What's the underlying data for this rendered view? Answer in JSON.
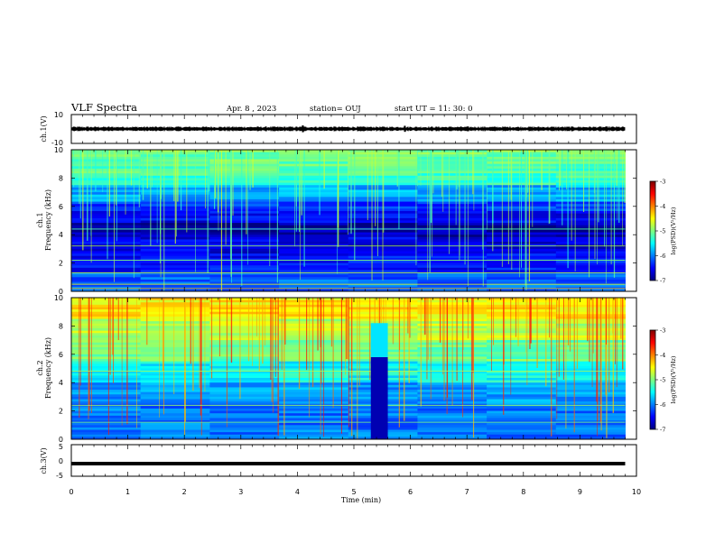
{
  "header": {
    "title": "VLF Spectra",
    "date": "Apr. 8 , 2023",
    "station": "station= OUJ",
    "start": "start UT = 11: 30: 0"
  },
  "chart_data": [
    {
      "type": "line",
      "panel": "ch1-waveform",
      "ylabel": "ch.1(V)",
      "ylim": [
        -10,
        10
      ],
      "yticks": [
        "10",
        "-10"
      ],
      "series": [
        {
          "values": [
            {
              "x_min": 0,
              "y_mean": 0
            },
            {
              "x_min": 4.1,
              "y_spike": 2.5
            },
            {
              "x_min": 5.9,
              "y_spike": 2.2
            },
            {
              "x_min": 9.8,
              "y_mean": 0
            }
          ]
        }
      ]
    },
    {
      "type": "heatmap",
      "panel": "ch1-spectrogram",
      "ylabel_line1": "ch.1",
      "ylabel_line2": "Frequency (kHz)",
      "ylim": [
        0,
        10
      ],
      "yticks": [
        "0",
        "2",
        "4",
        "6",
        "8",
        "10"
      ],
      "colorbar": {
        "label": "log(PSD)(V²/Hz)",
        "range": [
          -7,
          -3
        ],
        "ticks": [
          "-3",
          "-4",
          "-5",
          "-6",
          "-7"
        ]
      }
    },
    {
      "type": "heatmap",
      "panel": "ch2-spectrogram",
      "ylabel_line1": "ch.2",
      "ylabel_line2": "Frequency (kHz)",
      "ylim": [
        0,
        10
      ],
      "yticks": [
        "0",
        "2",
        "4",
        "6",
        "8",
        "10"
      ],
      "colorbar": {
        "label": "log(PSD)(V²/Hz)",
        "range": [
          -7,
          -3
        ],
        "ticks": [
          "-3",
          "-4",
          "-5",
          "-6",
          "-7"
        ]
      }
    },
    {
      "type": "line",
      "panel": "ch3-waveform",
      "ylabel": "ch.3(V)",
      "ylim": [
        -5,
        5
      ],
      "yticks": [
        "5",
        "0",
        "-5"
      ],
      "series": [
        {
          "values": [
            {
              "x_min": 0,
              "y": -1
            },
            {
              "x_min": 9.8,
              "y": -1
            }
          ]
        }
      ]
    }
  ],
  "x_axis": {
    "label": "Time (min)",
    "range": [
      0,
      10
    ],
    "data_end_min": 9.8,
    "ticks": [
      "0",
      "1",
      "2",
      "3",
      "4",
      "5",
      "6",
      "7",
      "8",
      "9",
      "10"
    ]
  },
  "colors": {
    "jet": [
      "#00007f",
      "#0000ff",
      "#007fff",
      "#00ffff",
      "#7fff7f",
      "#ffff00",
      "#ff7f00",
      "#ff0000",
      "#7f0000"
    ]
  }
}
